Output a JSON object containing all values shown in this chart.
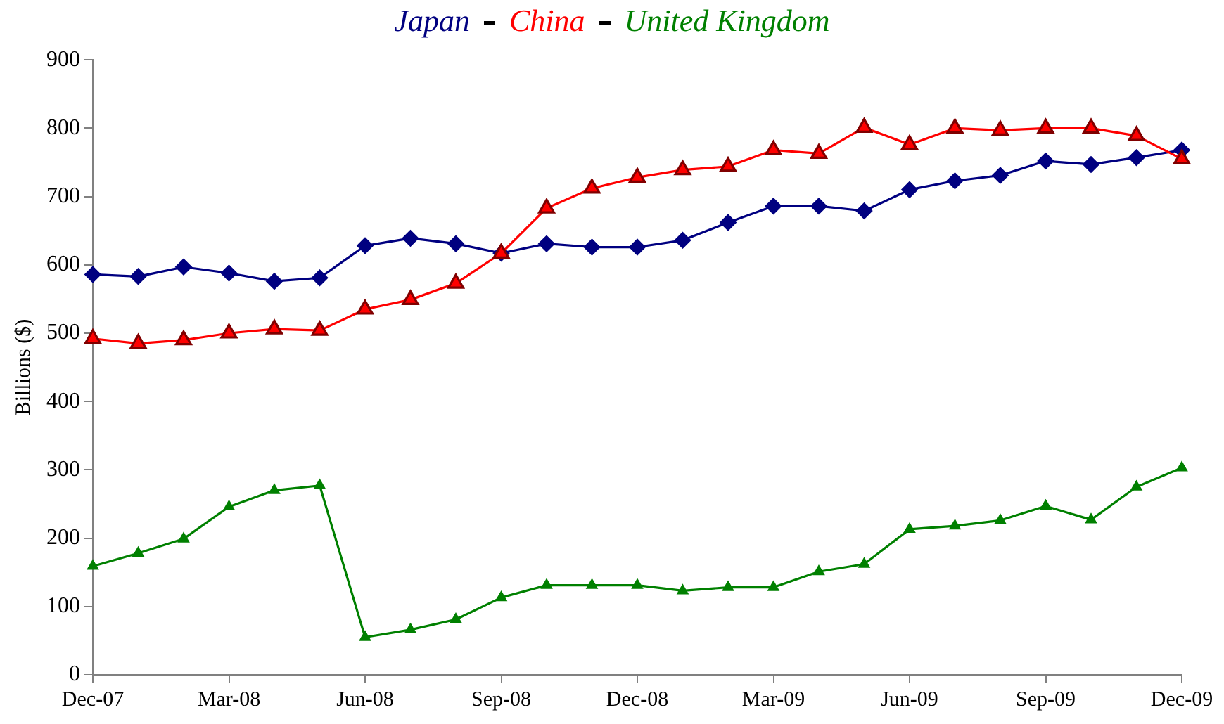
{
  "chart_data": {
    "type": "line",
    "ylabel": "Billions ($)",
    "categories": [
      "Dec-07",
      null,
      null,
      "Mar-08",
      null,
      null,
      "Jun-08",
      null,
      null,
      "Sep-08",
      null,
      null,
      "Dec-08",
      null,
      null,
      "Mar-09",
      null,
      null,
      "Jun-09",
      null,
      null,
      "Sep-09",
      null,
      null,
      "Dec-09"
    ],
    "series": [
      {
        "name": "Japan",
        "color": "#000080",
        "marker": "diamond",
        "values": [
          586,
          583,
          597,
          588,
          576,
          581,
          628,
          639,
          631,
          617,
          631,
          626,
          626,
          636,
          662,
          686,
          686,
          679,
          710,
          723,
          731,
          752,
          747,
          757,
          768
        ]
      },
      {
        "name": "China",
        "color": "#ff0000",
        "marker": "triangle",
        "values": [
          492,
          485,
          490,
          500,
          506,
          504,
          535,
          549,
          573,
          617,
          683,
          712,
          728,
          739,
          744,
          768,
          763,
          801,
          776,
          800,
          797,
          800,
          800,
          789,
          755
        ]
      },
      {
        "name": "United Kingdom",
        "color": "#008000",
        "marker": "triangle",
        "values": [
          159,
          178,
          199,
          246,
          270,
          277,
          55,
          66,
          81,
          113,
          131,
          131,
          131,
          123,
          128,
          128,
          151,
          162,
          213,
          218,
          226,
          247,
          227,
          275,
          303
        ]
      }
    ],
    "ylim": [
      0,
      900
    ],
    "yticks": [
      0,
      100,
      200,
      300,
      400,
      500,
      600,
      700,
      800,
      900
    ],
    "grid": false,
    "legend": "top",
    "line_style": "solid"
  }
}
